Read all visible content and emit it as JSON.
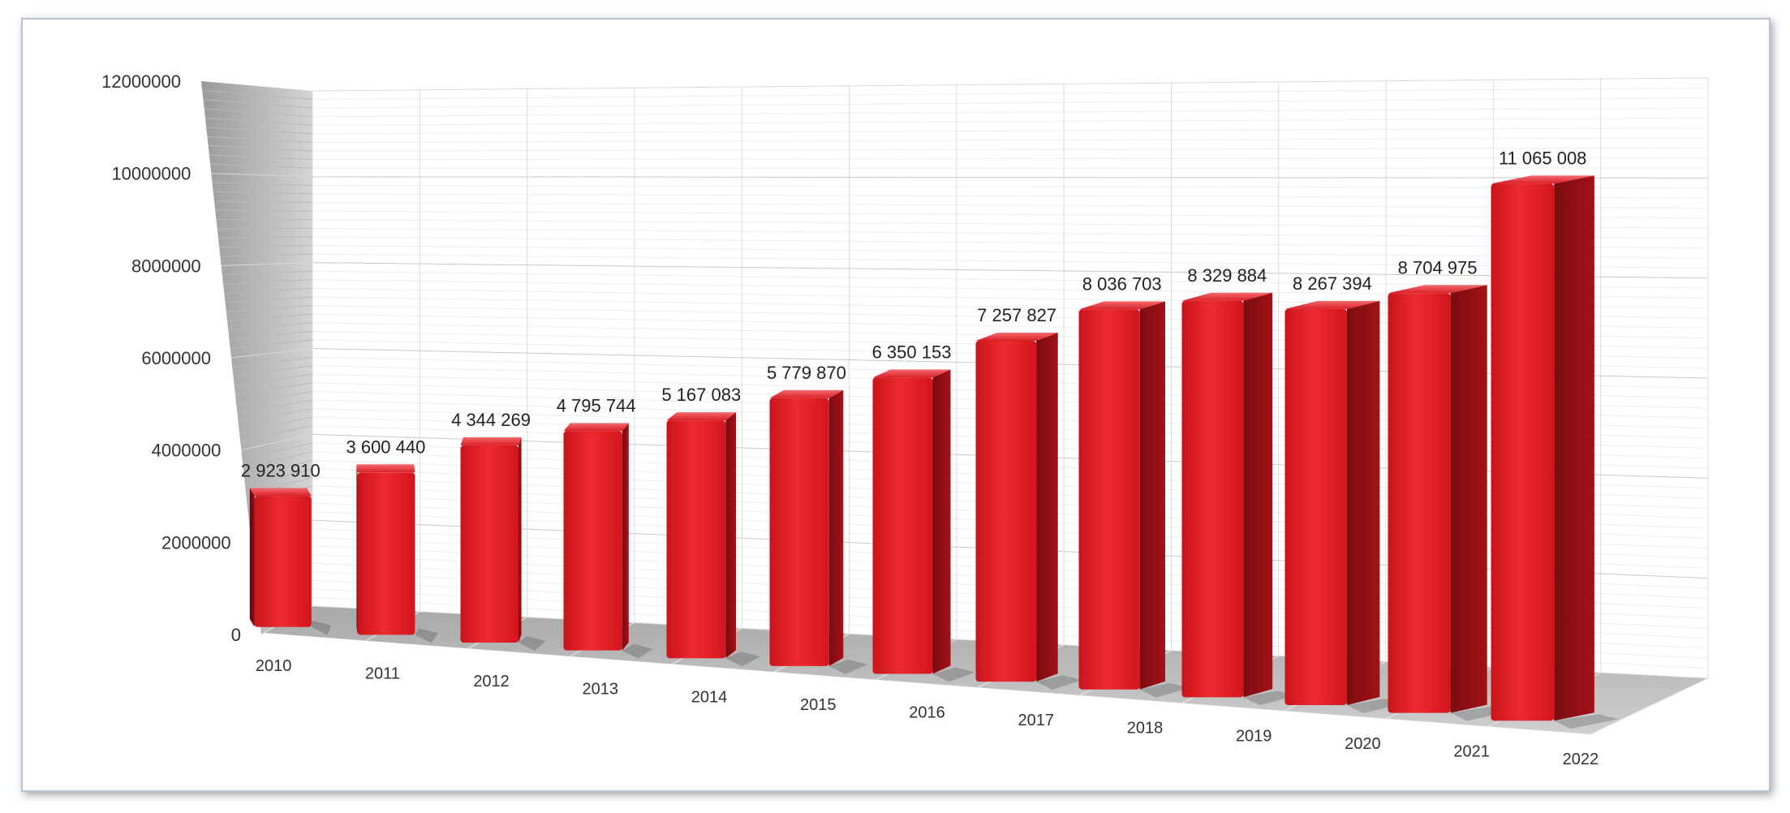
{
  "chart_data": {
    "type": "bar",
    "title": "",
    "xlabel": "",
    "ylabel": "",
    "ylim": [
      0,
      12000000
    ],
    "yticks": [
      0,
      2000000,
      4000000,
      6000000,
      8000000,
      10000000,
      12000000
    ],
    "ytick_labels": [
      "0",
      "2000000",
      "4000000",
      "6000000",
      "8000000",
      "10000000",
      "12000000"
    ],
    "grid": true,
    "legend": "none",
    "bar_color": "#e0191f",
    "categories": [
      "2010",
      "2011",
      "2012",
      "2013",
      "2014",
      "2015",
      "2016",
      "2017",
      "2018",
      "2019",
      "2020",
      "2021",
      "2022"
    ],
    "values": [
      2923910,
      3600440,
      4344269,
      4795744,
      5167083,
      5779870,
      6350153,
      7257827,
      8036703,
      8329884,
      8267394,
      8704975,
      11065008
    ],
    "data_labels": [
      "2 923 910",
      "3 600 440",
      "4 344 269",
      "4 795 744",
      "5 167 083",
      "5 779 870",
      "6 350 153",
      "7 257 827",
      "8 036 703",
      "8 329 884",
      "8 267 394",
      "8 704 975",
      "11 065 008"
    ]
  }
}
